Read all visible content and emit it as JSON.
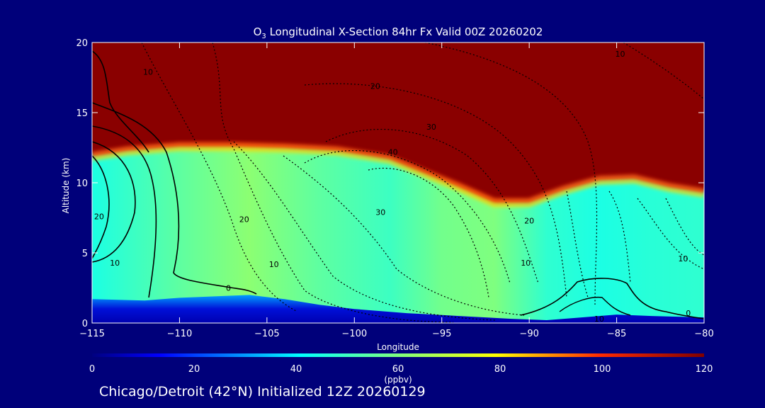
{
  "chart_data": {
    "type": "heatmap",
    "title_prefix": "O",
    "title_sub": "3",
    "title_rest": " Longitudinal X-Section 84hr  Fx Valid 00Z 20260202",
    "xlabel": "Longitude",
    "ylabel": "Altitude (km)",
    "xlim": [
      -115,
      -80
    ],
    "ylim": [
      0,
      20
    ],
    "x_ticks": [
      -115,
      -110,
      -105,
      -100,
      -95,
      -90,
      -85,
      -80
    ],
    "x_tick_labels": [
      "−115",
      "−110",
      "−105",
      "−100",
      "−95",
      "−90",
      "−85",
      "−80"
    ],
    "y_ticks": [
      0,
      5,
      10,
      15,
      20
    ],
    "y_tick_labels": [
      "0",
      "5",
      "10",
      "15",
      "20"
    ],
    "colorbar": {
      "range": [
        0,
        120
      ],
      "ticks": [
        0,
        20,
        40,
        60,
        80,
        100,
        120
      ],
      "tick_labels": [
        "0",
        "20",
        "40",
        "60",
        "80",
        "100",
        "120"
      ],
      "label": "(ppbv)"
    },
    "tropopause_km": [
      [
        -115,
        12.0
      ],
      [
        -113,
        12.4
      ],
      [
        -110,
        12.7
      ],
      [
        -107,
        12.7
      ],
      [
        -104,
        12.6
      ],
      [
        -101,
        12.4
      ],
      [
        -98,
        11.8
      ],
      [
        -96,
        10.8
      ],
      [
        -94,
        9.8
      ],
      [
        -92,
        8.7
      ],
      [
        -90,
        8.7
      ],
      [
        -88,
        9.6
      ],
      [
        -86,
        10.3
      ],
      [
        -84,
        10.4
      ],
      [
        -82,
        9.8
      ],
      [
        -80,
        9.4
      ]
    ],
    "boundary_layer_km": [
      [
        -115,
        1.7
      ],
      [
        -112,
        1.6
      ],
      [
        -110,
        1.8
      ],
      [
        -108,
        1.9
      ],
      [
        -106,
        2.0
      ],
      [
        -104,
        1.7
      ],
      [
        -102,
        1.3
      ],
      [
        -100,
        1.0
      ],
      [
        -97,
        0.7
      ],
      [
        -94,
        0.5
      ],
      [
        -91,
        0.3
      ],
      [
        -89,
        0.2
      ],
      [
        -87,
        0.4
      ],
      [
        -85,
        0.6
      ],
      [
        -83,
        0.5
      ],
      [
        -80,
        0.4
      ]
    ],
    "troposphere_ozone_ppbv": [
      [
        -115,
        45
      ],
      [
        -110,
        55
      ],
      [
        -106,
        62
      ],
      [
        -102,
        55
      ],
      [
        -98,
        50
      ],
      [
        -95,
        58
      ],
      [
        -92,
        60
      ],
      [
        -89,
        48
      ],
      [
        -86,
        45
      ],
      [
        -83,
        47
      ],
      [
        -80,
        48
      ]
    ],
    "contour_labels": [
      {
        "lon": -111.8,
        "alt": 17.7,
        "text": "10"
      },
      {
        "lon": -98.8,
        "alt": 16.7,
        "text": "20"
      },
      {
        "lon": -84.8,
        "alt": 19.0,
        "text": "10"
      },
      {
        "lon": -95.6,
        "alt": 13.8,
        "text": "30"
      },
      {
        "lon": -97.8,
        "alt": 12.0,
        "text": "40"
      },
      {
        "lon": -114.6,
        "alt": 7.4,
        "text": "20"
      },
      {
        "lon": -113.7,
        "alt": 4.1,
        "text": "10"
      },
      {
        "lon": -107.2,
        "alt": 2.3,
        "text": "0"
      },
      {
        "lon": -106.3,
        "alt": 7.2,
        "text": "20"
      },
      {
        "lon": -104.6,
        "alt": 4.0,
        "text": "10"
      },
      {
        "lon": -98.5,
        "alt": 7.7,
        "text": "30"
      },
      {
        "lon": -90.0,
        "alt": 7.1,
        "text": "20"
      },
      {
        "lon": -90.2,
        "alt": 4.1,
        "text": "10"
      },
      {
        "lon": -81.2,
        "alt": 4.4,
        "text": "10"
      },
      {
        "lon": -80.9,
        "alt": 0.5,
        "text": "0"
      },
      {
        "lon": -86.0,
        "alt": 0.1,
        "text": "10"
      }
    ]
  },
  "footer": "Chicago/Detroit (42°N) Initialized 12Z 20260129"
}
